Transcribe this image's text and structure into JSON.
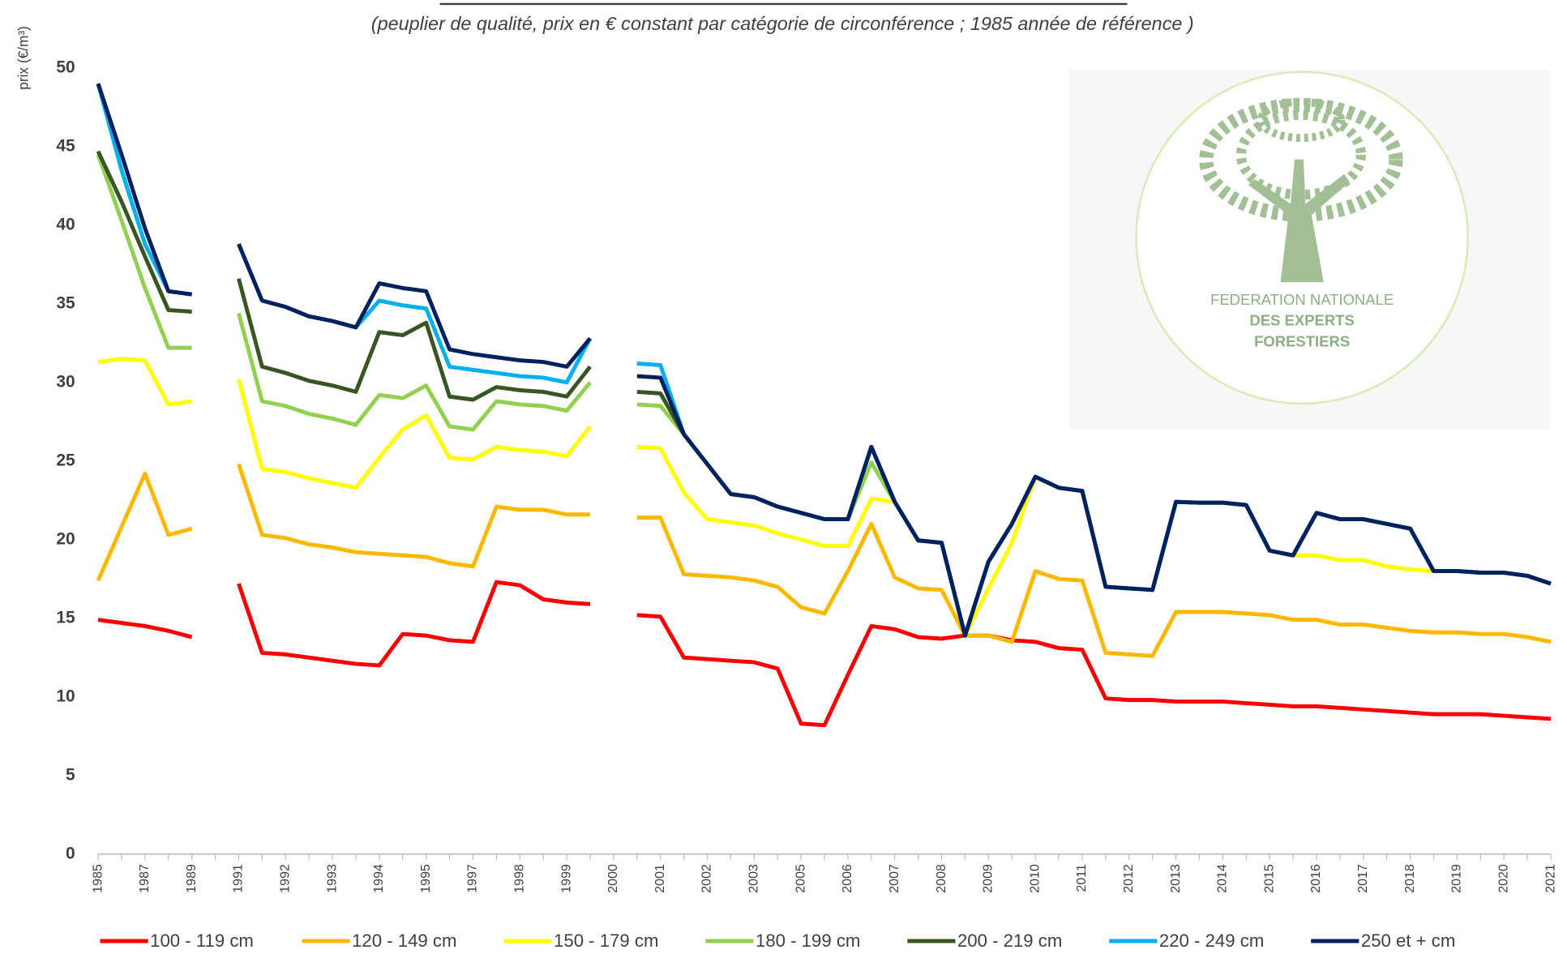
{
  "chart_data": {
    "type": "line",
    "subtitle": "(peuplier de qualité, prix en € constant par catégorie de circonférence ; 1985 année de référence )",
    "y_label": "prix (€/m³)",
    "categories": [
      "1985",
      null,
      "1987",
      null,
      "1989",
      null,
      "1991",
      null,
      "1992",
      null,
      "1993",
      null,
      "1994",
      null,
      "1995",
      null,
      "1997",
      null,
      "1998",
      null,
      "1999",
      null,
      "2000",
      null,
      "2001",
      null,
      "2002",
      null,
      "2003",
      null,
      "2005",
      null,
      "2006",
      null,
      "2007",
      null,
      "2008",
      null,
      "2009",
      null,
      "2010",
      null,
      "2011",
      null,
      "2012",
      null,
      "2013",
      null,
      "2014",
      null,
      "2015",
      null,
      "2016",
      null,
      "2017",
      null,
      "2018",
      null,
      "2019",
      null,
      "2020",
      null,
      "2021"
    ],
    "ylim": [
      0,
      50
    ],
    "yticks": [
      0,
      5,
      10,
      15,
      20,
      25,
      30,
      35,
      40,
      45,
      50
    ],
    "grid": false,
    "legend": "bottom",
    "series": [
      {
        "name": "100 - 119 cm",
        "color": "#ff0000",
        "values": [
          14.9,
          14.7,
          14.5,
          14.2,
          13.8,
          null,
          17.2,
          12.8,
          12.7,
          12.5,
          12.3,
          12.1,
          12.0,
          14.0,
          13.9,
          13.6,
          13.5,
          17.3,
          17.1,
          16.2,
          16.0,
          15.9,
          null,
          15.2,
          15.1,
          12.5,
          12.4,
          12.3,
          12.2,
          11.8,
          8.3,
          8.2,
          11.4,
          14.5,
          14.3,
          13.8,
          13.7,
          13.9,
          13.9,
          13.6,
          13.5,
          13.1,
          13.0,
          9.9,
          9.8,
          9.8,
          9.7,
          9.7,
          9.7,
          9.6,
          9.5,
          9.4,
          9.4,
          9.3,
          9.2,
          9.1,
          9.0,
          8.9,
          8.9,
          8.9,
          8.8,
          8.7,
          8.6
        ]
      },
      {
        "name": "120 - 149 cm",
        "color": "#ffb800",
        "values": [
          17.4,
          20.8,
          24.2,
          20.3,
          20.7,
          null,
          24.8,
          20.3,
          20.1,
          19.7,
          19.5,
          19.2,
          19.1,
          19.0,
          18.9,
          18.5,
          18.3,
          22.1,
          21.9,
          21.9,
          21.6,
          21.6,
          null,
          21.4,
          21.4,
          17.8,
          17.7,
          17.6,
          17.4,
          17.0,
          15.7,
          15.3,
          18.0,
          21.0,
          17.6,
          16.9,
          16.8,
          13.9,
          13.9,
          13.5,
          18.0,
          17.5,
          17.4,
          12.8,
          12.7,
          12.6,
          15.4,
          15.4,
          15.4,
          15.3,
          15.2,
          14.9,
          14.9,
          14.6,
          14.6,
          14.4,
          14.2,
          14.1,
          14.1,
          14.0,
          14.0,
          13.8,
          13.5
        ]
      },
      {
        "name": "150 - 179 cm",
        "color": "#ffff00",
        "values": [
          31.3,
          31.5,
          31.4,
          28.6,
          28.8,
          null,
          30.2,
          24.5,
          24.3,
          23.9,
          23.6,
          23.3,
          25.2,
          27.0,
          27.9,
          25.2,
          25.1,
          25.9,
          25.7,
          25.6,
          25.3,
          27.2,
          null,
          25.9,
          25.8,
          23.0,
          21.3,
          21.1,
          20.9,
          20.4,
          20.0,
          19.6,
          19.6,
          22.6,
          22.4,
          19.95,
          19.8,
          13.9,
          16.9,
          19.8,
          24.0,
          23.3,
          23.1,
          17.0,
          16.9,
          16.8,
          22.4,
          22.35,
          22.35,
          22.2,
          19.3,
          19.0,
          19.0,
          18.7,
          18.7,
          18.3,
          18.1,
          18.0,
          18.0,
          17.9,
          17.9,
          17.7,
          17.2
        ]
      },
      {
        "name": "180 - 199 cm",
        "color": "#92d050",
        "values": [
          44.5,
          40.3,
          36.0,
          32.2,
          32.2,
          null,
          34.4,
          28.8,
          28.5,
          28.0,
          27.7,
          27.3,
          29.2,
          29.0,
          29.8,
          27.2,
          27.0,
          28.8,
          28.6,
          28.5,
          28.2,
          30.0,
          null,
          28.6,
          28.5,
          26.7,
          24.8,
          22.9,
          22.7,
          22.1,
          21.7,
          21.3,
          21.3,
          24.9,
          22.4,
          19.95,
          19.8,
          13.9,
          18.6,
          21.0,
          24.0,
          23.3,
          23.1,
          17.0,
          16.9,
          16.8,
          22.4,
          22.35,
          22.35,
          22.2,
          19.3,
          19.0,
          21.7,
          21.3,
          21.3,
          21.0,
          20.7,
          18.0,
          18.0,
          17.9,
          17.9,
          17.7,
          17.2
        ]
      },
      {
        "name": "200 - 219 cm",
        "color": "#375623",
        "values": [
          44.7,
          41.5,
          38.0,
          34.6,
          34.5,
          null,
          36.6,
          31.0,
          30.6,
          30.1,
          29.8,
          29.4,
          33.2,
          33.0,
          33.8,
          29.1,
          28.9,
          29.7,
          29.5,
          29.4,
          29.1,
          31.0,
          null,
          29.4,
          29.3,
          26.7,
          24.8,
          22.9,
          22.7,
          22.1,
          21.7,
          21.3,
          21.3,
          25.9,
          22.4,
          19.95,
          19.8,
          13.9,
          18.6,
          21.0,
          24.0,
          23.3,
          23.1,
          17.0,
          16.9,
          16.8,
          22.4,
          22.35,
          22.35,
          22.2,
          19.3,
          19.0,
          21.7,
          21.3,
          21.3,
          21.0,
          20.7,
          18.0,
          18.0,
          17.9,
          17.9,
          17.7,
          17.2
        ]
      },
      {
        "name": "220 - 249 cm",
        "color": "#00b0f0",
        "values": [
          49,
          43.5,
          38.8,
          35.8,
          35.6,
          null,
          38.8,
          35.2,
          34.8,
          34.2,
          33.9,
          33.5,
          35.2,
          34.9,
          34.7,
          31.0,
          30.8,
          30.6,
          30.4,
          30.3,
          30.0,
          32.8,
          null,
          31.2,
          31.1,
          26.7,
          24.8,
          22.9,
          22.7,
          22.1,
          21.7,
          21.3,
          21.3,
          25.9,
          22.4,
          19.95,
          19.8,
          13.9,
          18.6,
          21.0,
          24.0,
          23.3,
          23.1,
          17.0,
          16.9,
          16.8,
          22.4,
          22.35,
          22.35,
          22.2,
          19.3,
          19.0,
          21.7,
          21.3,
          21.3,
          21.0,
          20.7,
          18.0,
          18.0,
          17.9,
          17.9,
          17.7,
          17.2
        ]
      },
      {
        "name": "250 et + cm",
        "color": "#002060",
        "values": [
          49,
          44.5,
          39.8,
          35.8,
          35.6,
          null,
          38.8,
          35.2,
          34.8,
          34.2,
          33.9,
          33.5,
          36.3,
          36.0,
          35.8,
          32.1,
          31.8,
          31.6,
          31.4,
          31.3,
          31.0,
          32.8,
          null,
          30.4,
          30.3,
          26.7,
          24.8,
          22.9,
          22.7,
          22.1,
          21.7,
          21.3,
          21.3,
          25.9,
          22.4,
          19.95,
          19.8,
          13.9,
          18.6,
          21.0,
          24.0,
          23.3,
          23.1,
          17.0,
          16.9,
          16.8,
          22.4,
          22.35,
          22.35,
          22.2,
          19.3,
          19.0,
          21.7,
          21.3,
          21.3,
          21.0,
          20.7,
          18.0,
          18.0,
          17.9,
          17.9,
          17.7,
          17.2
        ]
      }
    ]
  },
  "logo": {
    "lines": [
      "FEDERATION NATIONALE",
      "DES EXPERTS",
      "FORESTIERS"
    ]
  }
}
